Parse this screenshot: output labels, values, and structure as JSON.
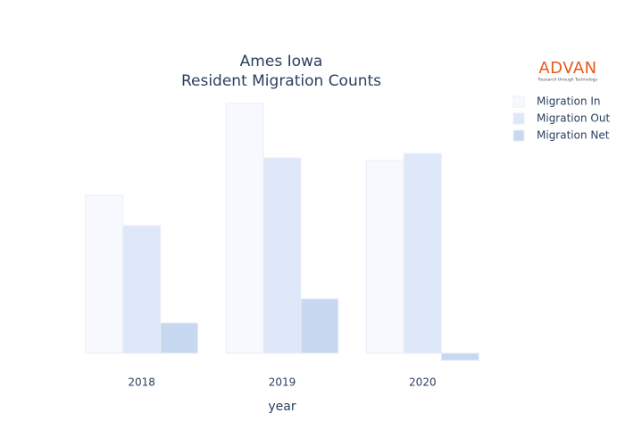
{
  "chart_data": {
    "type": "bar",
    "title": [
      "Ames Iowa",
      "Resident Migration Counts"
    ],
    "x_label": "year",
    "categories": [
      "2018",
      "2019",
      "2020"
    ],
    "series": [
      {
        "name": "Migration In",
        "color": "#f7f9fe",
        "values": [
          177,
          280,
          216
        ]
      },
      {
        "name": "Migration Out",
        "color": "#dfe8f8",
        "values": [
          143,
          219,
          224
        ]
      },
      {
        "name": "Migration Net",
        "color": "#c6d9f0",
        "values": [
          34,
          61,
          -8
        ]
      }
    ],
    "ylim": [
      -15,
      295
    ],
    "grid": false,
    "legend": "right"
  },
  "logo": {
    "name": "ADVAN",
    "tagline": "Research through Technology"
  }
}
